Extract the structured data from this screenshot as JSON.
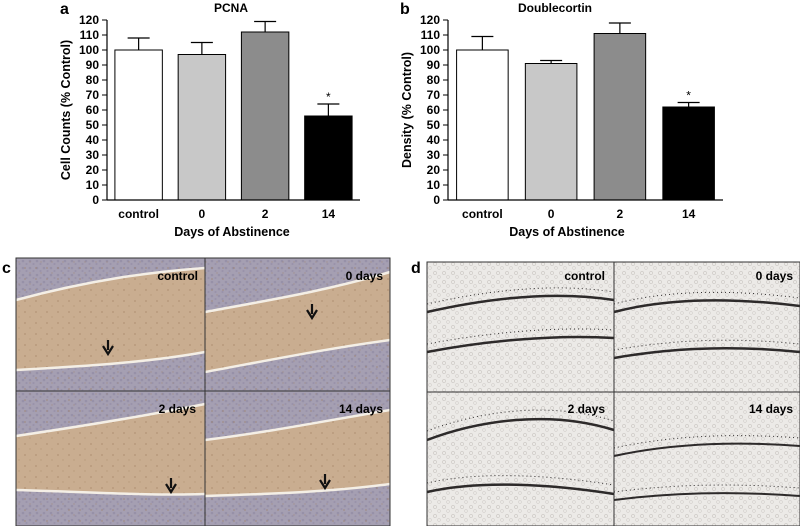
{
  "panels": [
    {
      "letter": "a"
    },
    {
      "letter": "b"
    },
    {
      "letter": "c"
    },
    {
      "letter": "d"
    }
  ],
  "chart_data": [
    {
      "type": "bar",
      "title": "PCNA",
      "xlabel": "Days of Abstinence",
      "ylabel": "Cell Counts (% Control)",
      "categories": [
        "control",
        "0",
        "2",
        "14"
      ],
      "values": [
        100,
        97,
        112,
        56
      ],
      "errors": [
        8,
        8,
        7,
        8
      ],
      "significance": [
        "",
        "",
        "",
        "*"
      ],
      "bar_colors": [
        "#ffffff",
        "#c8c8c8",
        "#8c8c8c",
        "#000000"
      ],
      "ylim": [
        0,
        120
      ],
      "yticks": [
        0,
        10,
        20,
        30,
        40,
        50,
        60,
        70,
        80,
        90,
        100,
        110,
        120
      ]
    },
    {
      "type": "bar",
      "title": "Doublecortin",
      "xlabel": "Days of Abstinence",
      "ylabel": "Density (% Control)",
      "categories": [
        "control",
        "0",
        "2",
        "14"
      ],
      "values": [
        100,
        91,
        111,
        62
      ],
      "errors": [
        9,
        2,
        7,
        3
      ],
      "significance": [
        "",
        "",
        "",
        "*"
      ],
      "bar_colors": [
        "#ffffff",
        "#c8c8c8",
        "#8c8c8c",
        "#000000"
      ],
      "ylim": [
        0,
        120
      ],
      "yticks": [
        0,
        10,
        20,
        30,
        40,
        50,
        60,
        70,
        80,
        90,
        100,
        110,
        120
      ]
    }
  ],
  "micrographs_c": {
    "labels": [
      "control",
      "0 days",
      "2 days",
      "14 days"
    ],
    "colors": {
      "tissue": "#c9ad90",
      "granule": "#a59fb2",
      "line": "#f4efe6"
    }
  },
  "micrographs_d": {
    "labels": [
      "control",
      "0 days",
      "2 days",
      "14 days"
    ],
    "colors": {
      "tissue": "#eceae7",
      "stain": "#2d2a2a"
    }
  }
}
